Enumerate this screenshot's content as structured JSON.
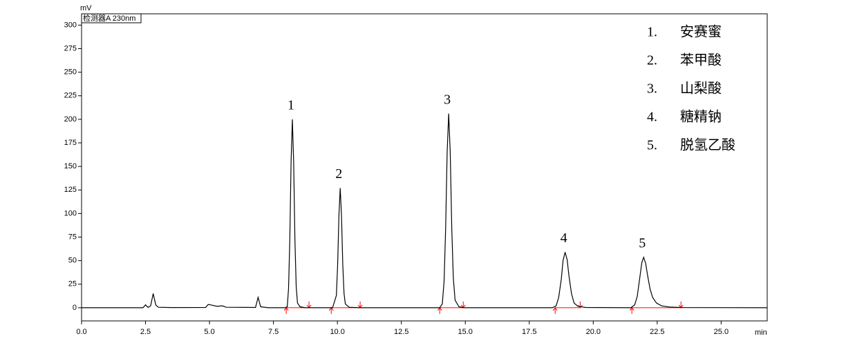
{
  "chart_data": {
    "type": "line",
    "y_label": "mV",
    "x_label": "min",
    "detector_label": "检测器A 230nm",
    "color": "#000000",
    "baseline_color": "#ff0000",
    "x": [
      0,
      2.4,
      2.5,
      2.6,
      2.7,
      2.8,
      2.9,
      3.0,
      3.5,
      4.85,
      4.95,
      5.05,
      5.3,
      5.5,
      5.65,
      6.8,
      6.9,
      7.0,
      7.3,
      7.94,
      8.04,
      8.09,
      8.14,
      8.19,
      8.24,
      8.29,
      8.34,
      8.39,
      8.44,
      8.54,
      8.74,
      9.81,
      9.96,
      10.01,
      10.06,
      10.11,
      10.16,
      10.21,
      10.26,
      10.31,
      10.46,
      10.9,
      14.0,
      14.1,
      14.17,
      14.23,
      14.29,
      14.35,
      14.41,
      14.47,
      14.53,
      14.6,
      14.75,
      14.95,
      18.4,
      18.55,
      18.65,
      18.75,
      18.82,
      18.9,
      18.98,
      19.05,
      19.15,
      19.25,
      19.4,
      19.7,
      21.47,
      21.62,
      21.72,
      21.82,
      21.9,
      21.97,
      22.05,
      22.12,
      22.22,
      22.32,
      22.47,
      22.67,
      22.97,
      23.47,
      26.8
    ],
    "values": [
      0,
      0,
      3,
      0.3,
      2,
      15,
      3,
      0.5,
      0.2,
      0.3,
      3.5,
      3,
      1.5,
      2,
      0.5,
      0.3,
      11,
      1,
      0,
      0,
      1,
      20,
      72,
      155,
      200,
      155,
      72,
      22,
      5,
      1,
      0,
      0,
      13,
      46,
      98,
      127,
      98,
      46,
      15,
      4,
      0.5,
      0,
      0,
      4,
      28,
      83,
      165,
      206,
      165,
      85,
      32,
      8,
      1,
      0,
      0,
      2,
      11,
      30,
      50,
      59,
      51,
      34,
      15,
      5,
      1.5,
      0.3,
      0,
      3,
      12,
      32,
      48,
      53.5,
      47,
      35,
      20,
      11,
      5,
      2,
      0.8,
      0.2,
      0
    ],
    "xlim": [
      0,
      26.8
    ],
    "ylim": [
      -14,
      312
    ],
    "xticks": [
      {
        "value": 0,
        "label": "0.0"
      },
      2.5,
      {
        "value": 5,
        "label": "5.0"
      },
      7.5,
      {
        "value": 10,
        "label": "10.0"
      },
      12.5,
      {
        "value": 15,
        "label": "15.0"
      },
      17.5,
      {
        "value": 20,
        "label": "20.0"
      },
      22.5,
      {
        "value": 25,
        "label": "25.0"
      }
    ],
    "yticks": [
      0,
      25,
      50,
      75,
      100,
      125,
      150,
      175,
      200,
      225,
      250,
      275,
      300
    ],
    "integration_windows": [
      [
        8.0,
        8.89
      ],
      [
        9.76,
        10.89
      ],
      [
        14.0,
        14.92
      ],
      [
        18.51,
        19.49
      ],
      [
        21.51,
        23.43
      ]
    ],
    "peak_labels": [
      "1",
      "2",
      "3",
      "4",
      "5"
    ],
    "compounds": [
      {
        "number": "1.",
        "name": "安赛蜜"
      },
      {
        "number": "2.",
        "name": "苯甲酸"
      },
      {
        "number": "3.",
        "name": "山梨酸"
      },
      {
        "number": "4.",
        "name": "糖精钠"
      },
      {
        "number": "5.",
        "name": "脱氢乙酸"
      }
    ]
  }
}
